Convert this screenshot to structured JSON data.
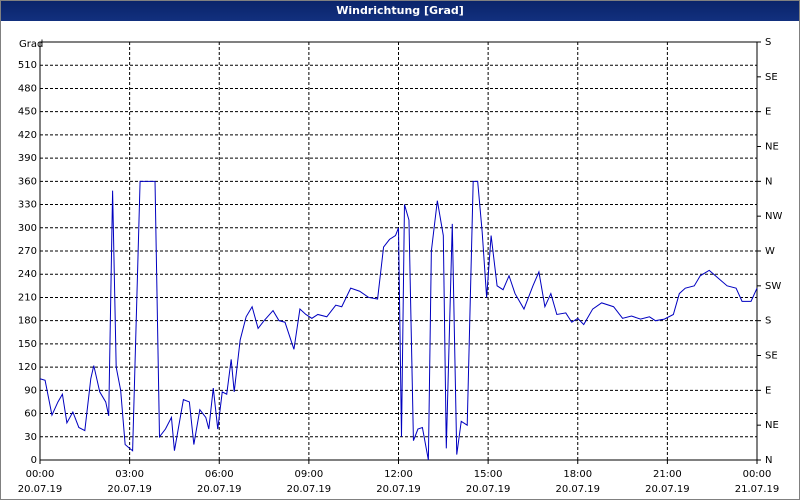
{
  "chart_data": {
    "type": "line",
    "title": "Windrichtung [Grad]",
    "y_label": "Grad",
    "x": [
      0,
      0.17,
      0.4,
      0.6,
      0.75,
      0.9,
      1.1,
      1.3,
      1.5,
      1.7,
      1.8,
      2.0,
      2.2,
      2.3,
      2.43,
      2.55,
      2.7,
      2.85,
      3.0,
      3.1,
      3.35,
      3.5,
      3.85,
      4.0,
      4.2,
      4.4,
      4.5,
      4.8,
      5.0,
      5.15,
      5.35,
      5.55,
      5.65,
      5.8,
      5.95,
      6.1,
      6.25,
      6.4,
      6.5,
      6.7,
      6.9,
      7.1,
      7.3,
      7.5,
      7.8,
      8.0,
      8.2,
      8.5,
      8.7,
      8.9,
      9.1,
      9.3,
      9.6,
      9.9,
      10.1,
      10.4,
      10.7,
      11.0,
      11.3,
      11.5,
      11.7,
      11.9,
      12.0,
      12.1,
      12.2,
      12.35,
      12.5,
      12.65,
      12.8,
      13.0,
      13.1,
      13.3,
      13.5,
      13.6,
      13.8,
      13.95,
      14.1,
      14.3,
      14.5,
      14.65,
      14.8,
      14.95,
      15.1,
      15.3,
      15.5,
      15.7,
      15.9,
      16.2,
      16.5,
      16.7,
      16.9,
      17.1,
      17.3,
      17.6,
      17.8,
      18.0,
      18.2,
      18.5,
      18.8,
      19.2,
      19.5,
      19.8,
      20.1,
      20.4,
      20.6,
      20.9,
      21.2,
      21.4,
      21.6,
      21.9,
      22.1,
      22.4,
      22.7,
      23.0,
      23.3,
      23.5,
      23.8,
      24.0
    ],
    "series": [
      {
        "name": "Windrichtung",
        "color": "#0000c0",
        "values": [
          105,
          103,
          58,
          75,
          85,
          48,
          62,
          42,
          38,
          105,
          122,
          88,
          75,
          57,
          348,
          120,
          90,
          20,
          15,
          12,
          360,
          360,
          360,
          30,
          40,
          55,
          12,
          78,
          75,
          20,
          65,
          55,
          40,
          93,
          40,
          88,
          85,
          130,
          88,
          155,
          185,
          198,
          170,
          180,
          193,
          180,
          178,
          143,
          195,
          188,
          183,
          188,
          185,
          200,
          198,
          222,
          218,
          210,
          208,
          275,
          285,
          290,
          300,
          30,
          330,
          310,
          25,
          40,
          42,
          0,
          270,
          335,
          290,
          15,
          305,
          7,
          50,
          45,
          360,
          360,
          295,
          210,
          290,
          225,
          220,
          238,
          215,
          195,
          225,
          243,
          198,
          215,
          188,
          190,
          178,
          183,
          175,
          195,
          203,
          198,
          183,
          186,
          182,
          185,
          180,
          182,
          188,
          215,
          222,
          225,
          238,
          245,
          235,
          225,
          222,
          205,
          205,
          222
        ]
      }
    ],
    "xlim": [
      0,
      24
    ],
    "xticks": [
      {
        "value": 0,
        "label": "00:00"
      },
      {
        "value": 3,
        "label": "03:00"
      },
      {
        "value": 6,
        "label": "06:00"
      },
      {
        "value": 9,
        "label": "09:00"
      },
      {
        "value": 12,
        "label": "12:00"
      },
      {
        "value": 15,
        "label": "15:00"
      },
      {
        "value": 18,
        "label": "18:00"
      },
      {
        "value": 21,
        "label": "21:00"
      },
      {
        "value": 24,
        "label": "00:00"
      }
    ],
    "xtick_dates": [
      "20.07.19",
      "20.07.19",
      "20.07.19",
      "20.07.19",
      "20.07.19",
      "20.07.19",
      "20.07.19",
      "20.07.19",
      "21.07.19"
    ],
    "ylim": [
      0,
      540
    ],
    "yticks": [
      0,
      30,
      60,
      90,
      120,
      150,
      180,
      210,
      240,
      270,
      300,
      330,
      360,
      390,
      420,
      450,
      480,
      510
    ],
    "y2lim": [
      0,
      540
    ],
    "y2ticks": [
      {
        "value": 0,
        "label": "N"
      },
      {
        "value": 45,
        "label": "NE"
      },
      {
        "value": 90,
        "label": "E"
      },
      {
        "value": 135,
        "label": "SE"
      },
      {
        "value": 180,
        "label": "S"
      },
      {
        "value": 225,
        "label": "SW"
      },
      {
        "value": 270,
        "label": "W"
      },
      {
        "value": 315,
        "label": "NW"
      },
      {
        "value": 360,
        "label": "N"
      },
      {
        "value": 405,
        "label": "NE"
      },
      {
        "value": 450,
        "label": "E"
      },
      {
        "value": 495,
        "label": "SE"
      },
      {
        "value": 540,
        "label": "S"
      }
    ],
    "grid": true
  }
}
